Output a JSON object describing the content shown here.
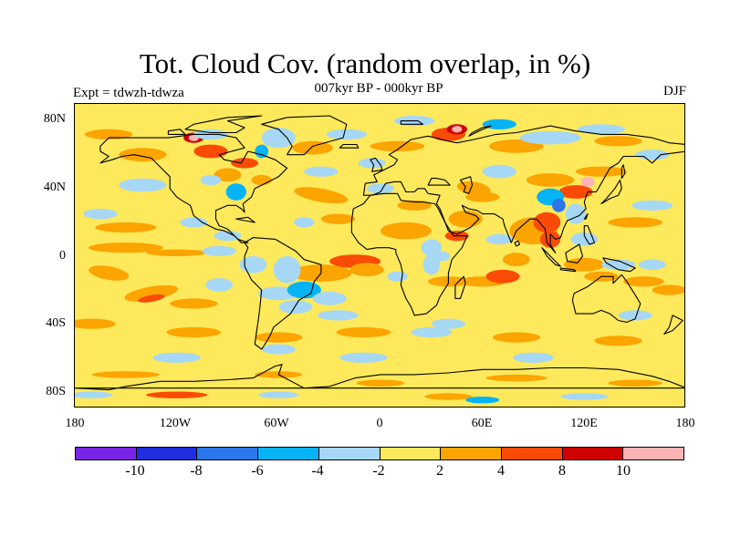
{
  "title": "Tot. Cloud Cov. (random overlap, in %)",
  "subtitle": "007kyr BP - 000kyr BP",
  "left_label": "Expt = tdwzh-tdwza",
  "right_label": "DJF",
  "lat_labels": [
    "80N",
    "40N",
    "0",
    "40S",
    "80S"
  ],
  "lon_labels": [
    "180",
    "120W",
    "60W",
    "0",
    "60E",
    "120E",
    "180"
  ],
  "colorbar": {
    "colors": [
      "#7a25e6",
      "#1f2fe0",
      "#2b76ea",
      "#06b3f5",
      "#a6d7f5",
      "#fde95b",
      "#fca400",
      "#fa4b06",
      "#cf0000",
      "#fcb3b3"
    ],
    "labels": [
      "-10",
      "-8",
      "-6",
      "-4",
      "-2",
      "2",
      "4",
      "8",
      "10"
    ]
  },
  "map": {
    "background_color": "#fde95b",
    "coast_color": "#000000"
  }
}
